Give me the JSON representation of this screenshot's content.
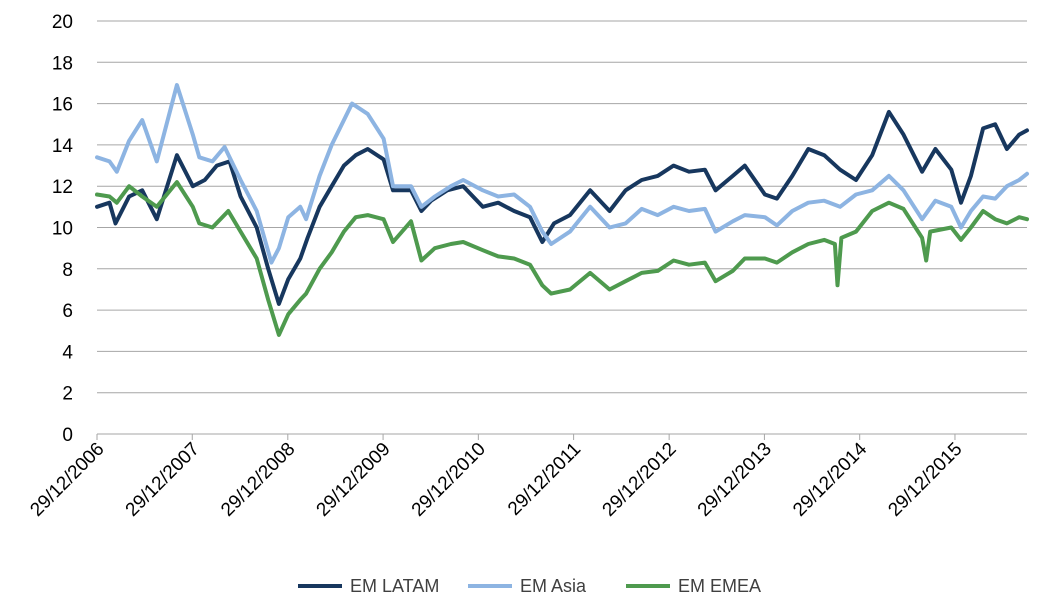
{
  "chart_data": {
    "type": "line",
    "title": "",
    "xlabel": "",
    "ylabel": "",
    "ylim": [
      0,
      20
    ],
    "y_ticks": [
      "0",
      "2",
      "4",
      "6",
      "8",
      "10",
      "12",
      "14",
      "16",
      "18",
      "20"
    ],
    "x_ticks": [
      "29/12/2006",
      "29/12/2007",
      "29/12/2008",
      "29/12/2009",
      "29/12/2010",
      "29/12/2011",
      "29/12/2012",
      "29/12/2013",
      "29/12/2014",
      "29/12/2015"
    ],
    "xlim": [
      "2006-12-29",
      "2016-09-30"
    ],
    "grid": "horizontal",
    "legend_position": "bottom",
    "series": [
      {
        "name": "EM LATAM",
        "color": "#17375e",
        "points": [
          [
            "2006-12-29",
            11.0
          ],
          [
            "2007-02-15",
            11.2
          ],
          [
            "2007-03-10",
            10.2
          ],
          [
            "2007-05-01",
            11.5
          ],
          [
            "2007-06-20",
            11.8
          ],
          [
            "2007-08-15",
            10.4
          ],
          [
            "2007-10-31",
            13.5
          ],
          [
            "2007-12-31",
            12.0
          ],
          [
            "2008-02-15",
            12.3
          ],
          [
            "2008-04-01",
            13.0
          ],
          [
            "2008-05-20",
            13.2
          ],
          [
            "2008-07-01",
            11.5
          ],
          [
            "2008-09-01",
            10.0
          ],
          [
            "2008-10-15",
            8.0
          ],
          [
            "2008-11-25",
            6.3
          ],
          [
            "2008-12-31",
            7.5
          ],
          [
            "2009-02-15",
            8.5
          ],
          [
            "2009-03-15",
            9.5
          ],
          [
            "2009-04-30",
            11.0
          ],
          [
            "2009-06-15",
            12.0
          ],
          [
            "2009-08-01",
            13.0
          ],
          [
            "2009-09-15",
            13.5
          ],
          [
            "2009-10-31",
            13.8
          ],
          [
            "2009-12-31",
            13.3
          ],
          [
            "2010-02-05",
            11.8
          ],
          [
            "2010-04-15",
            11.8
          ],
          [
            "2010-05-25",
            10.8
          ],
          [
            "2010-07-01",
            11.3
          ],
          [
            "2010-09-01",
            11.8
          ],
          [
            "2010-11-01",
            12.0
          ],
          [
            "2011-01-15",
            11.0
          ],
          [
            "2011-03-15",
            11.2
          ],
          [
            "2011-05-15",
            10.8
          ],
          [
            "2011-07-15",
            10.5
          ],
          [
            "2011-08-31",
            9.3
          ],
          [
            "2011-10-15",
            10.2
          ],
          [
            "2011-12-15",
            10.6
          ],
          [
            "2012-03-01",
            11.8
          ],
          [
            "2012-05-15",
            10.8
          ],
          [
            "2012-07-15",
            11.8
          ],
          [
            "2012-09-15",
            12.3
          ],
          [
            "2012-11-15",
            12.5
          ],
          [
            "2013-01-15",
            13.0
          ],
          [
            "2013-03-15",
            12.7
          ],
          [
            "2013-05-15",
            12.8
          ],
          [
            "2013-06-25",
            11.8
          ],
          [
            "2013-08-30",
            12.5
          ],
          [
            "2013-10-15",
            13.0
          ],
          [
            "2013-12-31",
            11.6
          ],
          [
            "2014-02-15",
            11.4
          ],
          [
            "2014-04-15",
            12.5
          ],
          [
            "2014-06-15",
            13.8
          ],
          [
            "2014-08-15",
            13.5
          ],
          [
            "2014-10-15",
            12.8
          ],
          [
            "2014-12-15",
            12.3
          ],
          [
            "2015-02-15",
            13.5
          ],
          [
            "2015-04-20",
            15.6
          ],
          [
            "2015-06-15",
            14.5
          ],
          [
            "2015-08-25",
            12.7
          ],
          [
            "2015-10-15",
            13.8
          ],
          [
            "2015-12-15",
            12.8
          ],
          [
            "2016-01-21",
            11.2
          ],
          [
            "2016-02-28",
            12.5
          ],
          [
            "2016-04-15",
            14.8
          ],
          [
            "2016-05-31",
            15.0
          ],
          [
            "2016-07-15",
            13.8
          ],
          [
            "2016-08-31",
            14.5
          ],
          [
            "2016-09-30",
            14.7
          ]
        ]
      },
      {
        "name": "EM Asia",
        "color": "#8db4e2",
        "points": [
          [
            "2006-12-29",
            13.4
          ],
          [
            "2007-02-15",
            13.2
          ],
          [
            "2007-03-15",
            12.7
          ],
          [
            "2007-05-01",
            14.2
          ],
          [
            "2007-06-20",
            15.2
          ],
          [
            "2007-08-15",
            13.2
          ],
          [
            "2007-10-31",
            16.9
          ],
          [
            "2007-12-31",
            14.5
          ],
          [
            "2008-01-25",
            13.4
          ],
          [
            "2008-03-15",
            13.2
          ],
          [
            "2008-05-01",
            13.9
          ],
          [
            "2008-07-01",
            12.3
          ],
          [
            "2008-09-01",
            10.8
          ],
          [
            "2008-10-27",
            8.3
          ],
          [
            "2008-11-25",
            9.0
          ],
          [
            "2008-12-31",
            10.5
          ],
          [
            "2009-02-15",
            11.0
          ],
          [
            "2009-03-09",
            10.4
          ],
          [
            "2009-04-30",
            12.5
          ],
          [
            "2009-06-15",
            14.0
          ],
          [
            "2009-08-01",
            15.2
          ],
          [
            "2009-09-01",
            16.0
          ],
          [
            "2009-10-31",
            15.5
          ],
          [
            "2009-12-31",
            14.3
          ],
          [
            "2010-02-05",
            12.0
          ],
          [
            "2010-04-15",
            12.0
          ],
          [
            "2010-05-25",
            11.0
          ],
          [
            "2010-07-15",
            11.5
          ],
          [
            "2010-09-15",
            12.0
          ],
          [
            "2010-11-01",
            12.3
          ],
          [
            "2011-01-15",
            11.8
          ],
          [
            "2011-03-15",
            11.5
          ],
          [
            "2011-05-15",
            11.6
          ],
          [
            "2011-07-15",
            11.0
          ],
          [
            "2011-08-31",
            9.8
          ],
          [
            "2011-10-04",
            9.2
          ],
          [
            "2011-12-15",
            9.8
          ],
          [
            "2012-03-01",
            11.0
          ],
          [
            "2012-05-15",
            10.0
          ],
          [
            "2012-07-15",
            10.2
          ],
          [
            "2012-09-15",
            10.9
          ],
          [
            "2012-11-15",
            10.6
          ],
          [
            "2013-01-15",
            11.0
          ],
          [
            "2013-03-15",
            10.8
          ],
          [
            "2013-05-15",
            10.9
          ],
          [
            "2013-06-25",
            9.8
          ],
          [
            "2013-08-30",
            10.3
          ],
          [
            "2013-10-15",
            10.6
          ],
          [
            "2013-12-31",
            10.5
          ],
          [
            "2014-02-15",
            10.1
          ],
          [
            "2014-04-15",
            10.8
          ],
          [
            "2014-06-15",
            11.2
          ],
          [
            "2014-08-15",
            11.3
          ],
          [
            "2014-10-15",
            11.0
          ],
          [
            "2014-12-15",
            11.6
          ],
          [
            "2015-02-15",
            11.8
          ],
          [
            "2015-04-20",
            12.5
          ],
          [
            "2015-06-15",
            11.8
          ],
          [
            "2015-08-25",
            10.4
          ],
          [
            "2015-10-15",
            11.3
          ],
          [
            "2015-12-15",
            11.0
          ],
          [
            "2016-01-21",
            10.0
          ],
          [
            "2016-02-28",
            10.8
          ],
          [
            "2016-04-15",
            11.5
          ],
          [
            "2016-05-31",
            11.4
          ],
          [
            "2016-07-15",
            12.0
          ],
          [
            "2016-08-31",
            12.3
          ],
          [
            "2016-09-30",
            12.6
          ]
        ]
      },
      {
        "name": "EM EMEA",
        "color": "#4e9a4e",
        "points": [
          [
            "2006-12-29",
            11.6
          ],
          [
            "2007-02-15",
            11.5
          ],
          [
            "2007-03-15",
            11.2
          ],
          [
            "2007-05-01",
            12.0
          ],
          [
            "2007-06-20",
            11.5
          ],
          [
            "2007-08-15",
            11.0
          ],
          [
            "2007-10-31",
            12.2
          ],
          [
            "2007-12-31",
            11.0
          ],
          [
            "2008-01-25",
            10.2
          ],
          [
            "2008-03-15",
            10.0
          ],
          [
            "2008-05-15",
            10.8
          ],
          [
            "2008-07-01",
            9.8
          ],
          [
            "2008-09-01",
            8.5
          ],
          [
            "2008-10-15",
            6.5
          ],
          [
            "2008-11-25",
            4.8
          ],
          [
            "2008-12-31",
            5.8
          ],
          [
            "2009-02-15",
            6.5
          ],
          [
            "2009-03-09",
            6.8
          ],
          [
            "2009-04-30",
            8.0
          ],
          [
            "2009-06-15",
            8.8
          ],
          [
            "2009-08-01",
            9.8
          ],
          [
            "2009-09-15",
            10.5
          ],
          [
            "2009-10-31",
            10.6
          ],
          [
            "2009-12-31",
            10.4
          ],
          [
            "2010-02-05",
            9.3
          ],
          [
            "2010-04-15",
            10.3
          ],
          [
            "2010-05-25",
            8.4
          ],
          [
            "2010-07-15",
            9.0
          ],
          [
            "2010-09-15",
            9.2
          ],
          [
            "2010-11-01",
            9.3
          ],
          [
            "2011-01-15",
            8.9
          ],
          [
            "2011-03-15",
            8.6
          ],
          [
            "2011-05-15",
            8.5
          ],
          [
            "2011-07-15",
            8.2
          ],
          [
            "2011-08-31",
            7.2
          ],
          [
            "2011-10-04",
            6.8
          ],
          [
            "2011-12-15",
            7.0
          ],
          [
            "2012-03-01",
            7.8
          ],
          [
            "2012-05-15",
            7.0
          ],
          [
            "2012-07-15",
            7.4
          ],
          [
            "2012-09-15",
            7.8
          ],
          [
            "2012-11-15",
            7.9
          ],
          [
            "2013-01-15",
            8.4
          ],
          [
            "2013-03-15",
            8.2
          ],
          [
            "2013-05-15",
            8.3
          ],
          [
            "2013-06-25",
            7.4
          ],
          [
            "2013-08-30",
            7.9
          ],
          [
            "2013-10-15",
            8.5
          ],
          [
            "2013-12-31",
            8.5
          ],
          [
            "2014-02-15",
            8.3
          ],
          [
            "2014-04-15",
            8.8
          ],
          [
            "2014-06-15",
            9.2
          ],
          [
            "2014-08-15",
            9.4
          ],
          [
            "2014-09-25",
            9.2
          ],
          [
            "2014-10-05",
            7.2
          ],
          [
            "2014-10-20",
            9.5
          ],
          [
            "2014-12-15",
            9.8
          ],
          [
            "2015-02-15",
            10.8
          ],
          [
            "2015-04-20",
            11.2
          ],
          [
            "2015-06-15",
            10.9
          ],
          [
            "2015-08-25",
            9.5
          ],
          [
            "2015-09-10",
            8.4
          ],
          [
            "2015-09-25",
            9.8
          ],
          [
            "2015-12-15",
            10.0
          ],
          [
            "2016-01-21",
            9.4
          ],
          [
            "2016-02-28",
            10.0
          ],
          [
            "2016-04-15",
            10.8
          ],
          [
            "2016-05-31",
            10.4
          ],
          [
            "2016-07-15",
            10.2
          ],
          [
            "2016-08-31",
            10.5
          ],
          [
            "2016-09-30",
            10.4
          ]
        ]
      }
    ]
  }
}
